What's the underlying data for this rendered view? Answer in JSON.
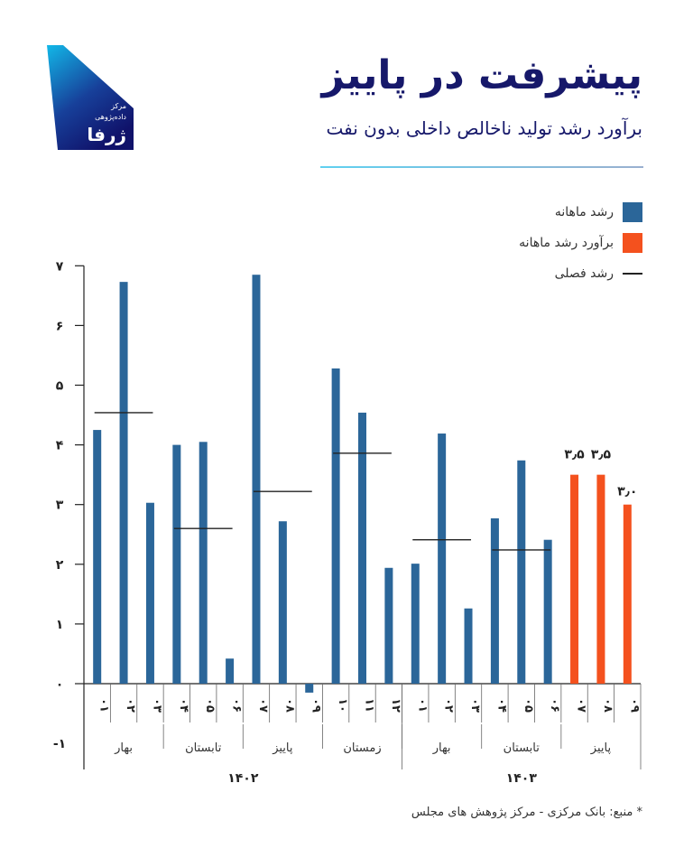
{
  "header": {
    "title": "پیشرفت در پاییز",
    "subtitle": "برآورد رشد تولید ناخالص داخلی بدون نفت",
    "logo_text": [
      "مرکز",
      "داده‌پژوهی",
      "ژرفا"
    ]
  },
  "legend": [
    {
      "label": "رشد ماهانه",
      "color": "#2b6699",
      "type": "box"
    },
    {
      "label": "برآورد رشد ماهانه",
      "color": "#f4511e",
      "type": "box"
    },
    {
      "label": "رشد فصلی",
      "color": "#222222",
      "type": "line"
    }
  ],
  "source": "* منبع: بانک مرکزی - مرکز پژوهش های مجلس",
  "chart_data": {
    "type": "bar",
    "title": "پیشرفت در پاییز",
    "subtitle": "برآورد رشد تولید ناخالص داخلی بدون نفت",
    "ylim": [
      -1,
      7
    ],
    "yticks": [
      -1,
      0,
      1,
      2,
      3,
      4,
      5,
      6,
      7
    ],
    "ytick_labels": [
      "-۱",
      "۰",
      "۱",
      "۲",
      "۳",
      "۴",
      "۵",
      "۶",
      "۷"
    ],
    "categories": [
      "۰۱",
      "۰۲",
      "۰۳",
      "۰۴",
      "۰۵",
      "۰۶",
      "۰۷",
      "۰۸",
      "۰۹",
      "۱۰",
      "۱۱",
      "۱۲",
      "۰۱",
      "۰۲",
      "۰۳",
      "۰۴",
      "۰۵",
      "۰۶",
      "۰۷",
      "۰۸",
      "۰۹"
    ],
    "values": [
      4.25,
      6.73,
      3.03,
      4.0,
      4.05,
      0.42,
      6.85,
      2.72,
      -0.15,
      5.28,
      4.54,
      1.94,
      2.01,
      4.19,
      1.26,
      2.77,
      3.74,
      2.41,
      3.5,
      3.5,
      3.0
    ],
    "estimated": [
      false,
      false,
      false,
      false,
      false,
      false,
      false,
      false,
      false,
      false,
      false,
      false,
      false,
      false,
      false,
      false,
      false,
      false,
      true,
      true,
      true
    ],
    "data_labels": [
      {
        "index": 18,
        "text": "۳٫۵"
      },
      {
        "index": 19,
        "text": "۳٫۵"
      },
      {
        "index": 20,
        "text": "۳٫۰"
      }
    ],
    "seasons": [
      {
        "label": "بهار",
        "start": 0,
        "end": 2,
        "seasonal_growth": 4.54
      },
      {
        "label": "تابستان",
        "start": 3,
        "end": 5,
        "seasonal_growth": 2.6
      },
      {
        "label": "پاییز",
        "start": 6,
        "end": 8,
        "seasonal_growth": 3.22
      },
      {
        "label": "زمستان",
        "start": 9,
        "end": 11,
        "seasonal_growth": 3.86
      },
      {
        "label": "بهار",
        "start": 12,
        "end": 14,
        "seasonal_growth": 2.41
      },
      {
        "label": "تابستان",
        "start": 15,
        "end": 17,
        "seasonal_growth": 2.24
      },
      {
        "label": "پاییز",
        "start": 18,
        "end": 20,
        "seasonal_growth": null
      }
    ],
    "years": [
      {
        "label": "۱۴۰۲",
        "start": 0,
        "end": 11
      },
      {
        "label": "۱۴۰۳",
        "start": 12,
        "end": 20
      }
    ],
    "colors": {
      "actual": "#2b6699",
      "estimate": "#f4511e",
      "seasonal": "#222222"
    },
    "grid": false,
    "legend_position": "top-right"
  }
}
